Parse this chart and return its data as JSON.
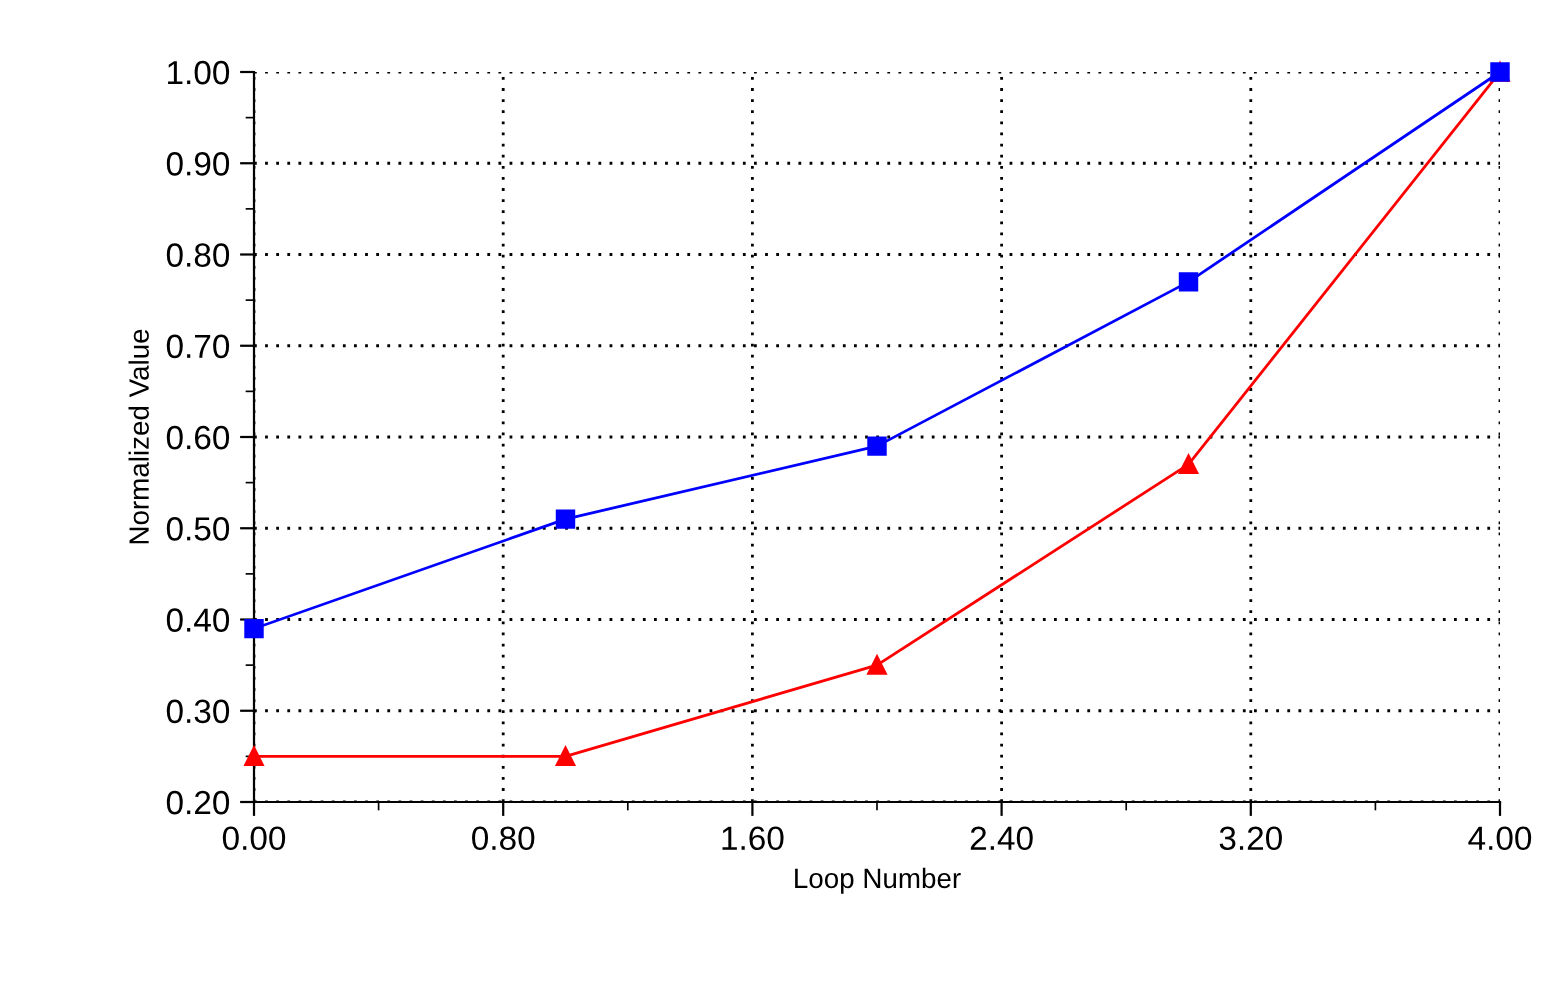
{
  "chart_data": {
    "type": "line",
    "xlabel": "Loop Number",
    "ylabel": "Normalized Value",
    "x": [
      0,
      1,
      2,
      3,
      4
    ],
    "series": [
      {
        "color": "#0000ff",
        "marker": "square",
        "values": [
          0.39,
          0.51,
          0.59,
          0.77,
          1.0
        ]
      },
      {
        "color": "#ff0000",
        "marker": "triangle",
        "values": [
          0.25,
          0.25,
          0.35,
          0.57,
          1.0
        ]
      }
    ],
    "xlim": [
      0,
      4
    ],
    "xticks": [
      {
        "value": 0,
        "label": "0.00"
      },
      {
        "value": 0.8,
        "label": "0.80"
      },
      {
        "value": 1.6,
        "label": "1.60"
      },
      {
        "value": 2.4,
        "label": "2.40"
      },
      {
        "value": 3.2,
        "label": "3.20"
      },
      {
        "value": 4,
        "label": "4.00"
      }
    ],
    "ylim": [
      0.2,
      1.0
    ],
    "yticks": [
      {
        "value": 0.2,
        "label": "0.20"
      },
      {
        "value": 0.3,
        "label": "0.30"
      },
      {
        "value": 0.4,
        "label": "0.40"
      },
      {
        "value": 0.5,
        "label": "0.50"
      },
      {
        "value": 0.6,
        "label": "0.60"
      },
      {
        "value": 0.7,
        "label": "0.70"
      },
      {
        "value": 0.8,
        "label": "0.80"
      },
      {
        "value": 0.9,
        "label": "0.90"
      },
      {
        "value": 1.0,
        "label": "1.00"
      }
    ],
    "grid": true,
    "line_style": "solid"
  }
}
